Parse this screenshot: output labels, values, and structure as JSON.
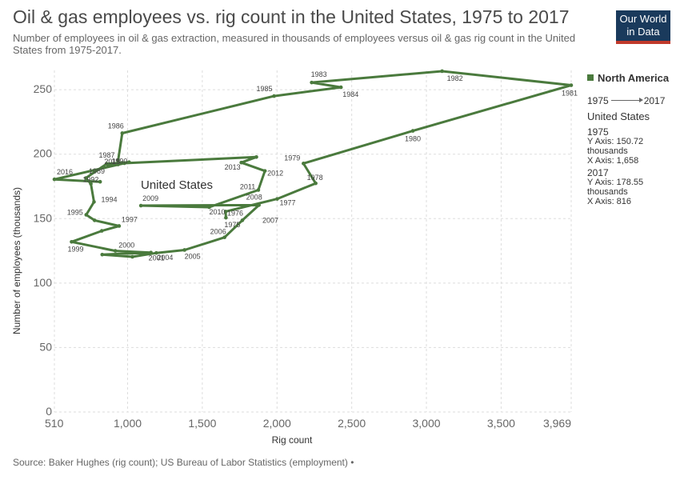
{
  "title": "Oil & gas employees vs. rig count in the United States, 1975 to 2017",
  "subtitle": "Number of employees in oil & gas extraction, measured in thousands of employees versus oil & gas rig count in the United States from 1975-2017.",
  "logo": {
    "line1": "Our World",
    "line2": "in Data"
  },
  "source": "Baker Hughes (rig count); US Bureau of Labor Statistics (employment)",
  "source_prefix": "Source:",
  "source_suffix": "•",
  "legend": {
    "region": "North America",
    "timeline_start": "1975",
    "timeline_end": "2017",
    "country": "United States",
    "start": {
      "year": "1975",
      "y_line": "Y Axis: 150.72",
      "unit": "thousands",
      "x_line": "X Axis: 1,658"
    },
    "end": {
      "year": "2017",
      "y_line": "Y Axis: 178.55",
      "unit": "thousands",
      "x_line": "X Axis: 816"
    }
  },
  "colors": {
    "series": "#4a7a3d",
    "grid": "#dddddd"
  },
  "chart_data": {
    "type": "line",
    "title": "Oil & gas employees vs. rig count in the United States, 1975 to 2017",
    "xlabel": "Rig count",
    "ylabel": "Number of employees (thousands)",
    "xlim": [
      510,
      3969
    ],
    "ylim": [
      0,
      265
    ],
    "x_ticks": [
      510,
      1000,
      1500,
      2000,
      2500,
      3000,
      3500,
      3969
    ],
    "x_tick_labels": [
      "510",
      "1,000",
      "1,500",
      "2,000",
      "2,500",
      "3,000",
      "3,500",
      "3,969"
    ],
    "y_ticks": [
      0,
      50,
      100,
      150,
      200,
      250
    ],
    "y_tick_labels": [
      "0",
      "50",
      "100",
      "150",
      "200",
      "250"
    ],
    "grid": true,
    "legend": "right",
    "series_label": "United States",
    "points": [
      {
        "year": "1975",
        "x": 1658,
        "y": 150.7
      },
      {
        "year": "1976",
        "x": 1656,
        "y": 155.5
      },
      {
        "year": "1977",
        "x": 2001,
        "y": 165.3
      },
      {
        "year": "1978",
        "x": 2259,
        "y": 177.4
      },
      {
        "year": "1979",
        "x": 2177,
        "y": 192.8
      },
      {
        "year": "1980",
        "x": 2909,
        "y": 218.1
      },
      {
        "year": "1981",
        "x": 3969,
        "y": 253.5
      },
      {
        "year": "1982",
        "x": 3105,
        "y": 264.4
      },
      {
        "year": "1983",
        "x": 2232,
        "y": 255.6
      },
      {
        "year": "1984",
        "x": 2428,
        "y": 251.9
      },
      {
        "year": "1985",
        "x": 1980,
        "y": 245.1
      },
      {
        "year": "1986",
        "x": 964,
        "y": 216.3
      },
      {
        "year": "1987",
        "x": 936,
        "y": 195.0
      },
      {
        "year": "1988",
        "x": 936,
        "y": 192.0
      },
      {
        "year": "1989",
        "x": 869,
        "y": 191.2
      },
      {
        "year": "1990",
        "x": 1010,
        "y": 193.8
      },
      {
        "year": "1991",
        "x": 860,
        "y": 192.5
      },
      {
        "year": "1992",
        "x": 721,
        "y": 181.5
      },
      {
        "year": "1993",
        "x": 754,
        "y": 177.0
      },
      {
        "year": "1994",
        "x": 775,
        "y": 163.0
      },
      {
        "year": "1995",
        "x": 723,
        "y": 153.0
      },
      {
        "year": "1996",
        "x": 779,
        "y": 148.7
      },
      {
        "year": "1997",
        "x": 943,
        "y": 144.3
      },
      {
        "year": "1998",
        "x": 827,
        "y": 140.5
      },
      {
        "year": "1999",
        "x": 625,
        "y": 132.0
      },
      {
        "year": "2000",
        "x": 918,
        "y": 125.0
      },
      {
        "year": "2001",
        "x": 1156,
        "y": 123.7
      },
      {
        "year": "2002",
        "x": 830,
        "y": 122.1
      },
      {
        "year": "2003",
        "x": 1032,
        "y": 120.4
      },
      {
        "year": "2004",
        "x": 1192,
        "y": 123.4
      },
      {
        "year": "2005",
        "x": 1381,
        "y": 125.7
      },
      {
        "year": "2006",
        "x": 1649,
        "y": 135.5
      },
      {
        "year": "2007",
        "x": 1768,
        "y": 148.7
      },
      {
        "year": "2008",
        "x": 1879,
        "y": 160.5
      },
      {
        "year": "2009",
        "x": 1089,
        "y": 160.1
      },
      {
        "year": "2010",
        "x": 1546,
        "y": 158.9
      },
      {
        "year": "2011",
        "x": 1875,
        "y": 172.2
      },
      {
        "year": "2012",
        "x": 1919,
        "y": 187.0
      },
      {
        "year": "2013",
        "x": 1761,
        "y": 193.5
      },
      {
        "year": "2014",
        "x": 1862,
        "y": 197.8
      },
      {
        "year": "2015",
        "x": 978,
        "y": 193.0
      },
      {
        "year": "2016",
        "x": 510,
        "y": 180.5
      },
      {
        "year": "2017",
        "x": 816,
        "y": 178.6
      }
    ],
    "visible_labels": [
      "1975",
      "1976",
      "1977",
      "1978",
      "1979",
      "1980",
      "1981",
      "1982",
      "1983",
      "1984",
      "1985",
      "1986",
      "1987",
      "1989",
      "1990",
      "1992",
      "1994",
      "1995",
      "1997",
      "1999",
      "2000",
      "2001",
      "2004",
      "2005",
      "2006",
      "2007",
      "2008",
      "2009",
      "2010",
      "2011",
      "2012",
      "2013",
      "2015",
      "2016"
    ]
  }
}
